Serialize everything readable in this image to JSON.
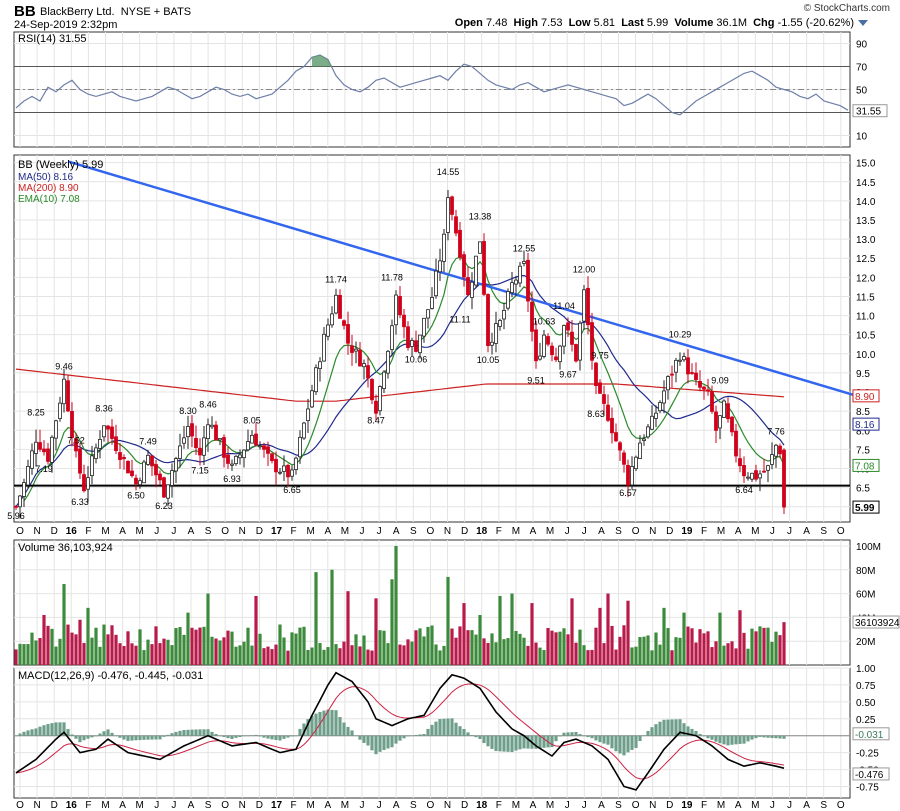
{
  "header": {
    "symbol": "BB",
    "name": "BlackBerry Ltd.",
    "exchange": "NYSE + BATS",
    "date": "24-Sep-2019 2:32pm",
    "brand": "© StockCharts.com",
    "open_label": "Open",
    "open": "7.48",
    "high_label": "High",
    "high": "7.53",
    "low_label": "Low",
    "low": "5.81",
    "last_label": "Last",
    "last": "5.99",
    "volume_label": "Volume",
    "volume": "36.1M",
    "chg_label": "Chg",
    "chg": "-1.55 (-20.62%)"
  },
  "colors": {
    "up": "#2f7d2f",
    "down": "#d0021b",
    "ma50": "#1f2a8c",
    "ma200": "#cc2222",
    "ema10": "#2a8a2a",
    "trend": "#3366ee",
    "rsi": "#6e7fa8",
    "volUp": "#3d8a3d",
    "volDown": "#b81a4a"
  },
  "chart_data": [
    {
      "type": "line",
      "title": "RSI(14) 31.55",
      "y_ticks": [
        "90",
        "70",
        "50",
        "30",
        "10"
      ],
      "ylim": [
        10,
        90
      ],
      "last_value": "31.55",
      "x": [
        0,
        2,
        4,
        6,
        8,
        10,
        12,
        14,
        16,
        18,
        20,
        22,
        24,
        26,
        28,
        30,
        32,
        34,
        36,
        38,
        40,
        42,
        44,
        46,
        48,
        50,
        52,
        54,
        56,
        58,
        60,
        62,
        64,
        66,
        68,
        70,
        72,
        74,
        76,
        78,
        80,
        82,
        84,
        86,
        88,
        90,
        92,
        94,
        96,
        98,
        100,
        102,
        104,
        106,
        108,
        110,
        112,
        114,
        116,
        118,
        120,
        122,
        124,
        126,
        128,
        130,
        132,
        134,
        136,
        138,
        140,
        142,
        144,
        146,
        148,
        150,
        152,
        154,
        156,
        158,
        160,
        162,
        164,
        166,
        168,
        170,
        172,
        174,
        176,
        178,
        180,
        182,
        184,
        186,
        188,
        190,
        192,
        194,
        196,
        198,
        200,
        202,
        204,
        206,
        208
      ],
      "values": [
        34,
        40,
        44,
        40,
        52,
        48,
        54,
        58,
        50,
        46,
        44,
        46,
        48,
        44,
        42,
        40,
        42,
        44,
        48,
        52,
        50,
        46,
        42,
        44,
        48,
        52,
        50,
        46,
        44,
        46,
        42,
        44,
        46,
        52,
        58,
        66,
        70,
        78,
        80,
        76,
        62,
        54,
        50,
        48,
        52,
        58,
        60,
        56,
        52,
        54,
        56,
        58,
        60,
        62,
        58,
        66,
        72,
        70,
        64,
        58,
        54,
        52,
        50,
        54,
        56,
        52,
        48,
        50,
        52,
        54,
        52,
        50,
        48,
        46,
        44,
        42,
        36,
        38,
        42,
        46,
        42,
        36,
        30,
        28,
        34,
        40,
        44,
        48,
        52,
        56,
        60,
        64,
        66,
        62,
        58,
        52,
        50,
        48,
        44,
        42,
        46,
        40,
        38,
        36,
        32
      ],
      "legend": "top-left",
      "grid": true
    },
    {
      "type": "candlestick",
      "title": "BB (Weekly) 5.99",
      "series_labels": [
        "MA(50) 8.16",
        "MA(200) 8.90",
        "EMA(10) 7.08"
      ],
      "x_ticks": [
        "O",
        "N",
        "D",
        "16",
        "F",
        "M",
        "A",
        "M",
        "J",
        "J",
        "A",
        "S",
        "O",
        "N",
        "D",
        "17",
        "F",
        "M",
        "A",
        "M",
        "J",
        "J",
        "A",
        "S",
        "O",
        "N",
        "D",
        "18",
        "F",
        "M",
        "A",
        "M",
        "J",
        "J",
        "A",
        "S",
        "O",
        "N",
        "D",
        "19",
        "F",
        "M",
        "A",
        "M",
        "J",
        "J",
        "A",
        "S",
        "O"
      ],
      "y_ticks": [
        "15.0",
        "14.5",
        "14.0",
        "13.5",
        "13.0",
        "12.5",
        "12.0",
        "11.5",
        "11.0",
        "10.5",
        "10.0",
        "9.5",
        "9.0",
        "8.5",
        "8.0",
        "7.5",
        "7.0",
        "6.5",
        "6.0"
      ],
      "ylim": [
        5.6,
        15.2
      ],
      "support_level": 6.55,
      "trendline": [
        [
          23,
          14.9
        ],
        [
          208,
          9.0
        ]
      ],
      "price_tags": [
        "8.90",
        "8.16",
        "7.08",
        "5.99"
      ],
      "annotations": [
        {
          "w": 0,
          "v": 5.96,
          "t": "5.96",
          "pos": "below"
        },
        {
          "w": 5,
          "v": 8.25,
          "t": "8.25",
          "pos": "above"
        },
        {
          "w": 7,
          "v": 7.19,
          "t": "7.19",
          "pos": "below"
        },
        {
          "w": 12,
          "v": 9.46,
          "t": "9.46",
          "pos": "above"
        },
        {
          "w": 15,
          "v": 7.52,
          "t": "7.52",
          "pos": "above"
        },
        {
          "w": 16,
          "v": 6.33,
          "t": "6.33",
          "pos": "below"
        },
        {
          "w": 22,
          "v": 8.36,
          "t": "8.36",
          "pos": "above"
        },
        {
          "w": 30,
          "v": 6.5,
          "t": "6.50",
          "pos": "below"
        },
        {
          "w": 33,
          "v": 7.49,
          "t": "7.49",
          "pos": "above"
        },
        {
          "w": 37,
          "v": 6.23,
          "t": "6.23",
          "pos": "below"
        },
        {
          "w": 43,
          "v": 8.3,
          "t": "8.30",
          "pos": "above"
        },
        {
          "w": 46,
          "v": 7.15,
          "t": "7.15",
          "pos": "below"
        },
        {
          "w": 48,
          "v": 8.46,
          "t": "8.46",
          "pos": "above"
        },
        {
          "w": 54,
          "v": 6.93,
          "t": "6.93",
          "pos": "below"
        },
        {
          "w": 59,
          "v": 8.05,
          "t": "8.05",
          "pos": "above"
        },
        {
          "w": 69,
          "v": 6.65,
          "t": "6.65",
          "pos": "below"
        },
        {
          "w": 80,
          "v": 11.74,
          "t": "11.74",
          "pos": "above"
        },
        {
          "w": 90,
          "v": 8.47,
          "t": "8.47",
          "pos": "below"
        },
        {
          "w": 94,
          "v": 11.78,
          "t": "11.78",
          "pos": "above"
        },
        {
          "w": 100,
          "v": 10.06,
          "t": "10.06",
          "pos": "below"
        },
        {
          "w": 108,
          "v": 14.55,
          "t": "14.55",
          "pos": "above"
        },
        {
          "w": 111,
          "v": 11.11,
          "t": "11.11",
          "pos": "below"
        },
        {
          "w": 116,
          "v": 13.38,
          "t": "13.38",
          "pos": "above"
        },
        {
          "w": 118,
          "v": 10.05,
          "t": "10.05",
          "pos": "below"
        },
        {
          "w": 127,
          "v": 12.55,
          "t": "12.55",
          "pos": "above"
        },
        {
          "w": 130,
          "v": 9.51,
          "t": "9.51",
          "pos": "below"
        },
        {
          "w": 132,
          "v": 10.63,
          "t": "10.63",
          "pos": "above"
        },
        {
          "w": 137,
          "v": 11.04,
          "t": "11.04",
          "pos": "above"
        },
        {
          "w": 138,
          "v": 9.67,
          "t": "9.67",
          "pos": "below"
        },
        {
          "w": 142,
          "v": 12.0,
          "t": "12.00",
          "pos": "above"
        },
        {
          "w": 146,
          "v": 9.75,
          "t": "9.75",
          "pos": "above"
        },
        {
          "w": 145,
          "v": 8.63,
          "t": "8.63",
          "pos": "below"
        },
        {
          "w": 153,
          "v": 6.57,
          "t": "6.57",
          "pos": "below"
        },
        {
          "w": 166,
          "v": 10.29,
          "t": "10.29",
          "pos": "above"
        },
        {
          "w": 176,
          "v": 9.09,
          "t": "9.09",
          "pos": "above"
        },
        {
          "w": 182,
          "v": 6.64,
          "t": "6.64",
          "pos": "below"
        },
        {
          "w": 190,
          "v": 7.76,
          "t": "7.76",
          "pos": "above"
        }
      ],
      "anchors": [
        [
          0,
          6.0
        ],
        [
          2,
          6.6
        ],
        [
          5,
          7.8
        ],
        [
          8,
          7.3
        ],
        [
          12,
          9.3
        ],
        [
          15,
          7.3
        ],
        [
          17,
          6.5
        ],
        [
          22,
          8.2
        ],
        [
          25,
          7.6
        ],
        [
          30,
          6.6
        ],
        [
          33,
          7.3
        ],
        [
          37,
          6.4
        ],
        [
          43,
          8.1
        ],
        [
          46,
          7.3
        ],
        [
          48,
          8.3
        ],
        [
          52,
          7.4
        ],
        [
          54,
          7.0
        ],
        [
          59,
          7.9
        ],
        [
          64,
          7.1
        ],
        [
          69,
          6.8
        ],
        [
          73,
          8.6
        ],
        [
          77,
          10.4
        ],
        [
          80,
          11.5
        ],
        [
          83,
          10.3
        ],
        [
          87,
          9.7
        ],
        [
          90,
          8.6
        ],
        [
          93,
          10.2
        ],
        [
          95,
          11.4
        ],
        [
          98,
          10.3
        ],
        [
          100,
          10.2
        ],
        [
          104,
          11.5
        ],
        [
          107,
          13.0
        ],
        [
          108,
          14.2
        ],
        [
          111,
          12.7
        ],
        [
          113,
          11.5
        ],
        [
          116,
          13.0
        ],
        [
          118,
          10.3
        ],
        [
          121,
          10.8
        ],
        [
          124,
          11.8
        ],
        [
          127,
          12.3
        ],
        [
          130,
          9.7
        ],
        [
          132,
          10.5
        ],
        [
          135,
          9.9
        ],
        [
          137,
          10.8
        ],
        [
          140,
          9.9
        ],
        [
          142,
          11.6
        ],
        [
          145,
          9.0
        ],
        [
          148,
          8.4
        ],
        [
          151,
          7.4
        ],
        [
          153,
          6.7
        ],
        [
          156,
          7.7
        ],
        [
          159,
          8.2
        ],
        [
          163,
          9.3
        ],
        [
          166,
          10.0
        ],
        [
          170,
          9.2
        ],
        [
          173,
          8.9
        ],
        [
          175,
          8.0
        ],
        [
          177,
          8.6
        ],
        [
          180,
          7.4
        ],
        [
          182,
          6.9
        ],
        [
          185,
          6.8
        ],
        [
          188,
          7.0
        ],
        [
          190,
          7.6
        ],
        [
          191,
          7.48
        ],
        [
          192,
          5.99
        ]
      ],
      "legend": "top-left",
      "grid": true
    },
    {
      "type": "bar",
      "title": "Volume 36,103,924",
      "y_ticks": [
        "100M",
        "80M",
        "60M",
        "40M",
        "20M"
      ],
      "ylim": [
        0,
        100
      ],
      "last_value": "36103924",
      "spikes": [
        [
          7,
          42
        ],
        [
          12,
          68
        ],
        [
          16,
          38
        ],
        [
          18,
          48
        ],
        [
          43,
          44
        ],
        [
          48,
          60
        ],
        [
          60,
          58
        ],
        [
          66,
          34
        ],
        [
          75,
          78
        ],
        [
          79,
          80
        ],
        [
          83,
          62
        ],
        [
          90,
          56
        ],
        [
          94,
          72
        ],
        [
          95,
          100
        ],
        [
          108,
          74
        ],
        [
          112,
          52
        ],
        [
          116,
          42
        ],
        [
          121,
          58
        ],
        [
          124,
          60
        ],
        [
          129,
          52
        ],
        [
          139,
          56
        ],
        [
          146,
          48
        ],
        [
          148,
          60
        ],
        [
          153,
          54
        ],
        [
          162,
          48
        ],
        [
          167,
          44
        ],
        [
          176,
          44
        ],
        [
          181,
          46
        ],
        [
          190,
          28
        ],
        [
          192,
          36
        ]
      ],
      "legend": "top-left",
      "grid": true
    },
    {
      "type": "line",
      "title": "MACD(12,26,9) -0.476, -0.445, -0.031",
      "y_ticks": [
        "1.00",
        "0.75",
        "0.50",
        "0.25",
        "0.00",
        "-0.25",
        "-0.50",
        "-0.75"
      ],
      "ylim": [
        -0.92,
        1.0
      ],
      "price_tags": [
        "-0.031",
        "-0.476"
      ],
      "macd_anchors": [
        [
          0,
          -0.55
        ],
        [
          5,
          -0.35
        ],
        [
          10,
          -0.05
        ],
        [
          12,
          0.05
        ],
        [
          16,
          -0.25
        ],
        [
          20,
          -0.2
        ],
        [
          23,
          -0.05
        ],
        [
          28,
          -0.25
        ],
        [
          32,
          -0.3
        ],
        [
          36,
          -0.35
        ],
        [
          42,
          -0.15
        ],
        [
          48,
          0.0
        ],
        [
          54,
          -0.15
        ],
        [
          60,
          -0.1
        ],
        [
          66,
          -0.25
        ],
        [
          70,
          -0.2
        ],
        [
          74,
          0.3
        ],
        [
          78,
          0.75
        ],
        [
          80,
          0.93
        ],
        [
          84,
          0.8
        ],
        [
          88,
          0.5
        ],
        [
          90,
          0.25
        ],
        [
          94,
          0.15
        ],
        [
          98,
          0.25
        ],
        [
          102,
          0.3
        ],
        [
          106,
          0.7
        ],
        [
          109,
          0.9
        ],
        [
          112,
          0.85
        ],
        [
          116,
          0.7
        ],
        [
          120,
          0.35
        ],
        [
          124,
          0.1
        ],
        [
          127,
          0.0
        ],
        [
          130,
          -0.15
        ],
        [
          134,
          -0.3
        ],
        [
          137,
          -0.1
        ],
        [
          140,
          -0.05
        ],
        [
          144,
          -0.15
        ],
        [
          148,
          -0.35
        ],
        [
          152,
          -0.75
        ],
        [
          155,
          -0.8
        ],
        [
          158,
          -0.55
        ],
        [
          162,
          -0.2
        ],
        [
          166,
          0.05
        ],
        [
          170,
          0.0
        ],
        [
          174,
          -0.15
        ],
        [
          178,
          -0.35
        ],
        [
          182,
          -0.45
        ],
        [
          186,
          -0.4
        ],
        [
          190,
          -0.45
        ],
        [
          192,
          -0.48
        ]
      ],
      "legend": "top-left",
      "grid": true
    }
  ]
}
